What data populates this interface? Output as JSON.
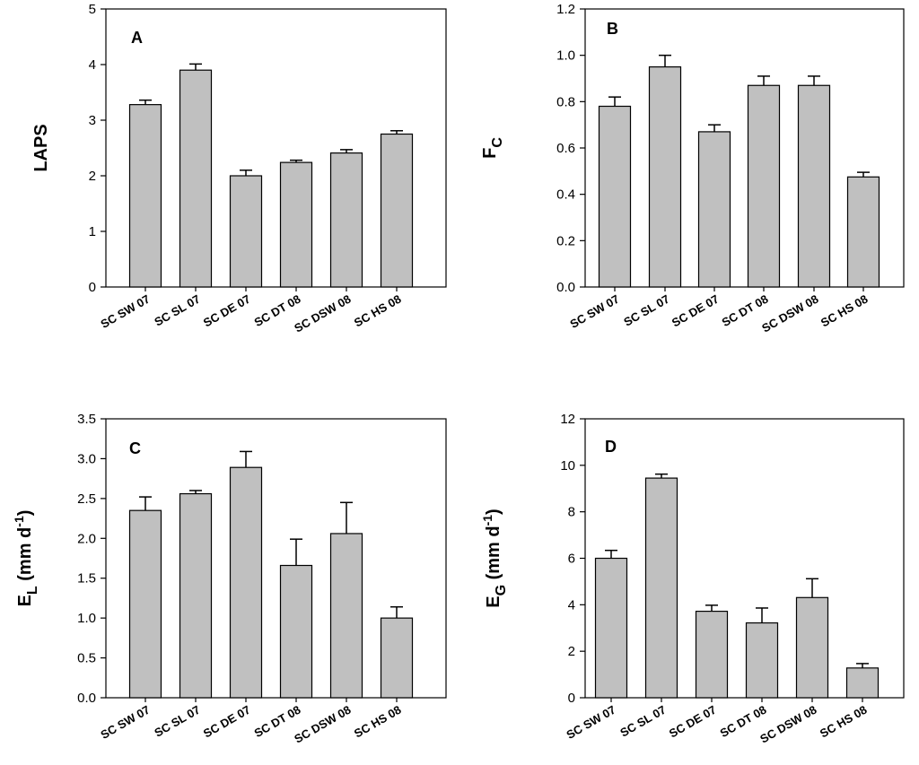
{
  "colors": {
    "bar_fill": "#c0c0c0",
    "stroke": "#000000"
  },
  "chart_data": [
    {
      "type": "bar",
      "panel": "A",
      "ylabel": {
        "main": "LAPS",
        "sub": "",
        "units": ""
      },
      "categories": [
        "SC SW 07",
        "SC SL 07",
        "SC DE 07",
        "SC DT 08",
        "SC DSW 08",
        "SC HS 08"
      ],
      "values": [
        3.28,
        3.9,
        2.0,
        2.24,
        2.41,
        2.75
      ],
      "errors": [
        0.08,
        0.11,
        0.1,
        0.04,
        0.06,
        0.06
      ],
      "ylim": [
        0,
        5
      ],
      "yticks": [
        "0",
        "1",
        "2",
        "3",
        "4",
        "5"
      ]
    },
    {
      "type": "bar",
      "panel": "B",
      "ylabel": {
        "main": "F",
        "sub": "C",
        "units": ""
      },
      "categories": [
        "SC SW 07",
        "SC SL 07",
        "SC DE 07",
        "SC DT 08",
        "SC DSW 08",
        "SC HS 08"
      ],
      "values": [
        0.78,
        0.95,
        0.67,
        0.87,
        0.87,
        0.475
      ],
      "errors": [
        0.04,
        0.05,
        0.03,
        0.04,
        0.04,
        0.02
      ],
      "ylim": [
        0,
        1.2
      ],
      "yticks": [
        "0.0",
        "0.2",
        "0.4",
        "0.6",
        "0.8",
        "1.0",
        "1.2"
      ]
    },
    {
      "type": "bar",
      "panel": "C",
      "ylabel": {
        "main": "E",
        "sub": "L",
        "units": " (mm d",
        "sup": "-1",
        "close": ")"
      },
      "categories": [
        "SC SW 07",
        "SC SL 07",
        "SC DE 07",
        "SC DT 08",
        "SC DSW 08",
        "SC HS 08"
      ],
      "values": [
        2.35,
        2.56,
        2.89,
        1.66,
        2.06,
        1.0
      ],
      "errors": [
        0.17,
        0.04,
        0.2,
        0.33,
        0.39,
        0.14
      ],
      "ylim": [
        0,
        3.5
      ],
      "yticks": [
        "0.0",
        "0.5",
        "1.0",
        "1.5",
        "2.0",
        "2.5",
        "3.0",
        "3.5"
      ]
    },
    {
      "type": "bar",
      "panel": "D",
      "ylabel": {
        "main": "E",
        "sub": "G",
        "units": " (mm d",
        "sup": "-1",
        "close": ")"
      },
      "categories": [
        "SC SW 07",
        "SC SL 07",
        "SC DE 07",
        "SC DT 08",
        "SC DSW 08",
        "SC HS 08"
      ],
      "values": [
        6.0,
        9.45,
        3.72,
        3.22,
        4.31,
        1.28
      ],
      "errors": [
        0.34,
        0.17,
        0.26,
        0.64,
        0.81,
        0.19
      ],
      "ylim": [
        0,
        12
      ],
      "yticks": [
        "0",
        "2",
        "4",
        "6",
        "8",
        "10",
        "12"
      ]
    }
  ]
}
